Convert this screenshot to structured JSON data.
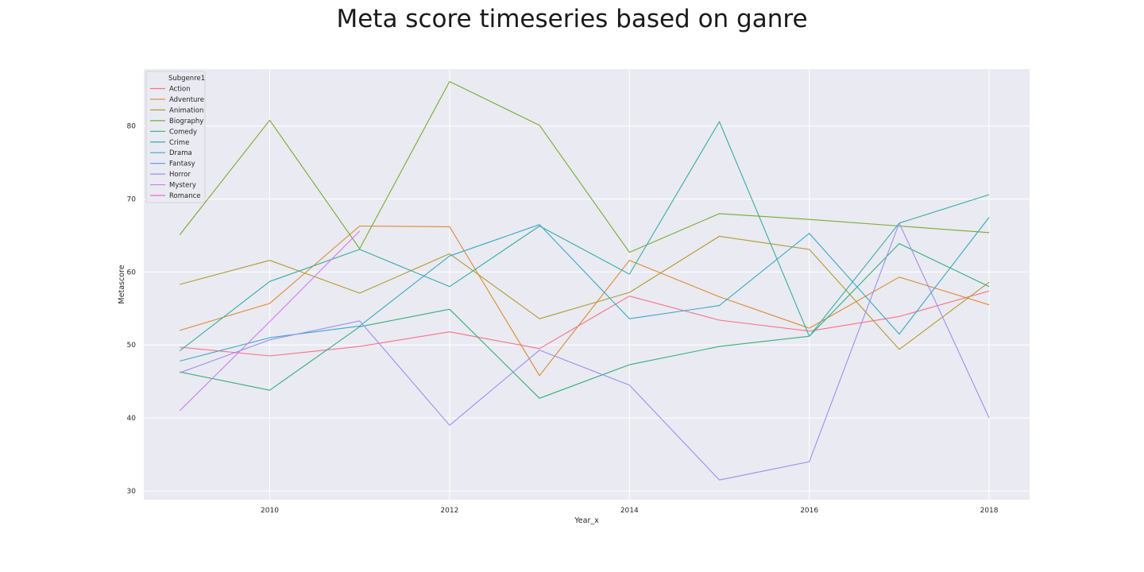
{
  "chart_data": {
    "type": "line",
    "title": "Meta score timeseries based on ganre",
    "xlabel": "Year_x",
    "ylabel": "Metascore",
    "xlim": [
      2008.6,
      2018.45
    ],
    "ylim": [
      28.8,
      87.8
    ],
    "xticks": [
      2010,
      2012,
      2014,
      2016,
      2018
    ],
    "yticks": [
      30,
      40,
      50,
      60,
      70,
      80
    ],
    "grid": true,
    "legend": {
      "title": "Subgenre1",
      "placement": "top-left"
    },
    "series": [
      {
        "name": "Action",
        "color": "#f77189",
        "x": [
          2009,
          2010,
          2011,
          2012,
          2013,
          2014,
          2015,
          2016,
          2017,
          2018
        ],
        "y": [
          49.7,
          48.5,
          49.8,
          51.8,
          49.5,
          56.7,
          53.4,
          51.9,
          53.9,
          57.4
        ]
      },
      {
        "name": "Adventure",
        "color": "#dc8932",
        "x": [
          2009,
          2010,
          2011,
          2012,
          2013,
          2014,
          2015,
          2016,
          2017,
          2018
        ],
        "y": [
          52.0,
          55.7,
          66.3,
          66.2,
          45.8,
          61.6,
          56.6,
          52.3,
          59.3,
          55.5
        ]
      },
      {
        "name": "Animation",
        "color": "#ae9d31",
        "x": [
          2009,
          2010,
          2011,
          2012,
          2013,
          2014,
          2015,
          2016,
          2017,
          2018
        ],
        "y": [
          58.3,
          61.6,
          57.1,
          62.5,
          53.6,
          57.2,
          64.9,
          63.1,
          49.4,
          58.6
        ]
      },
      {
        "name": "Biography",
        "color": "#77ab31",
        "x": [
          2009,
          2010,
          2011,
          2012,
          2013,
          2014,
          2015,
          2016,
          2017,
          2018
        ],
        "y": [
          65.1,
          80.8,
          63.2,
          86.1,
          80.1,
          62.7,
          68.0,
          67.2,
          66.3,
          65.4
        ]
      },
      {
        "name": "Comedy",
        "color": "#33b07a",
        "x": [
          2009,
          2010,
          2011,
          2012,
          2013,
          2014,
          2015,
          2016,
          2017,
          2018
        ],
        "y": [
          46.3,
          43.8,
          52.5,
          54.9,
          42.7,
          47.3,
          49.8,
          51.2,
          63.9,
          58.0
        ]
      },
      {
        "name": "Crime",
        "color": "#36ada4",
        "x": [
          2009,
          2010,
          2011,
          2012,
          2013,
          2014,
          2015,
          2016,
          2017,
          2018
        ],
        "y": [
          49.2,
          58.7,
          63.1,
          58.0,
          66.3,
          59.7,
          80.6,
          51.2,
          66.7,
          70.6
        ]
      },
      {
        "name": "Drama",
        "color": "#38a9c5",
        "x": [
          2009,
          2010,
          2011,
          2012,
          2013,
          2014,
          2015,
          2016,
          2017,
          2018
        ],
        "y": [
          47.8,
          51.0,
          52.6,
          62.2,
          66.5,
          53.6,
          55.4,
          65.3,
          51.5,
          67.5
        ]
      },
      {
        "name": "Fantasy",
        "color": "#6e9bf4",
        "x": [],
        "y": []
      },
      {
        "name": "Horror",
        "color": "#9b8ff0",
        "x": [
          2009,
          2010,
          2011,
          2012,
          2013,
          2014,
          2015,
          2016,
          2017,
          2018
        ],
        "y": [
          46.2,
          50.7,
          53.3,
          39.0,
          49.3,
          44.5,
          31.5,
          34.0,
          66.7,
          40.0
        ]
      },
      {
        "name": "Mystery",
        "color": "#cc7af4",
        "x": [
          2009,
          2010,
          2011
        ],
        "y": [
          41.0,
          53.2,
          65.6
        ]
      },
      {
        "name": "Romance",
        "color": "#f565cc",
        "x": [],
        "y": []
      }
    ]
  }
}
